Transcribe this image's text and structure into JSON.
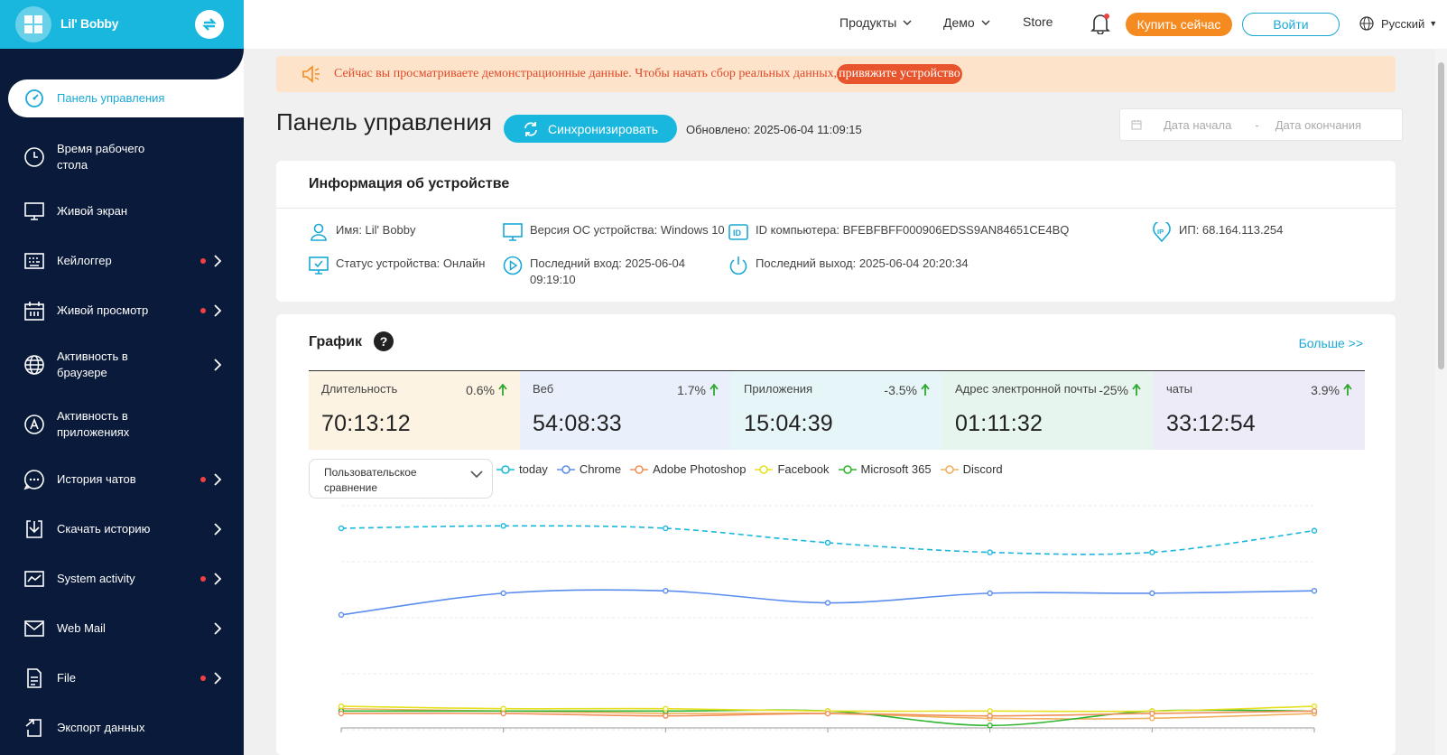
{
  "app": {
    "logo_text": "Lil' Bobby"
  },
  "sidebar": {
    "items": [
      {
        "label": "Панель управления",
        "icon": "speedometer-icon",
        "active": true
      },
      {
        "label": "Время рабочего стола",
        "icon": "clock-icon"
      },
      {
        "label": "Живой экран",
        "icon": "monitor-icon"
      },
      {
        "label": "Кейлоггер",
        "icon": "keyboard-icon",
        "dot": true,
        "chevron": true
      },
      {
        "label": "Живой просмотр",
        "icon": "calendar-icon",
        "dot": true,
        "chevron": true
      },
      {
        "label": "Активность в браузере",
        "icon": "globe-icon",
        "chevron": true
      },
      {
        "label": "Активность в приложениях",
        "icon": "app-store-icon",
        "chevron": true
      },
      {
        "label": "История чатов",
        "icon": "chat-icon",
        "dot": true,
        "chevron": true
      },
      {
        "label": "Скачать историю",
        "icon": "download-icon",
        "chevron": true
      },
      {
        "label": "System activity",
        "icon": "activity-icon",
        "dot": true,
        "chevron": true
      },
      {
        "label": "Web Mail",
        "icon": "mail-icon",
        "chevron": true
      },
      {
        "label": "File",
        "icon": "file-icon",
        "dot": true,
        "chevron": true
      },
      {
        "label": "Экспорт данных",
        "icon": "export-icon"
      }
    ]
  },
  "topbar": {
    "products": "Продукты",
    "demo": "Демо",
    "store": "Store",
    "buy": "Купить сейчас",
    "login": "Войти",
    "language": "Русский"
  },
  "banner": {
    "text": "Сейчас вы просматриваете демонстрационные данные. Чтобы начать сбор реальных данных,",
    "link": "привяжите устройство"
  },
  "header": {
    "title": "Панель управления",
    "sync": "Синхронизировать",
    "updated": "Обновлено: 2025-06-04 11:09:15",
    "date_start": "Дата начала",
    "date_sep": "-",
    "date_end": "Дата окончания"
  },
  "device": {
    "title": "Информация об устройстве",
    "name": "Имя: Lil' Bobby",
    "os": "Версия ОС устройства: Windows 10",
    "computer_id": "ID компьютера: BFEBFBFF000906EDSS9AN84651CE4BQ",
    "ip": "ИП: 68.164.113.254",
    "status": "Статус устройства: Онлайн",
    "last_login": "Последний вход: 2025-06-04 09:19:10",
    "last_logout": "Последний выход: 2025-06-04 20:20:34"
  },
  "graph": {
    "title": "График",
    "help": "?",
    "more": "Больше >>",
    "compare": "Пользовательское сравнение",
    "stats": [
      {
        "label": "Длительность",
        "pct": "0.6%",
        "value": "70:13:12",
        "bg": "#fdf3e3"
      },
      {
        "label": "Веб",
        "pct": "1.7%",
        "value": "54:08:33",
        "bg": "#eaf0fb"
      },
      {
        "label": "Приложения",
        "pct": "-3.5%",
        "value": "15:04:39",
        "bg": "#e6f6f8"
      },
      {
        "label": "Адрес электронной почты",
        "pct": "-25%",
        "value": "01:11:32",
        "bg": "#e6f5ee"
      },
      {
        "label": "чаты",
        "pct": "3.9%",
        "value": "33:12:54",
        "bg": "#eeebf9"
      }
    ],
    "legend": [
      {
        "name": "today",
        "color": "#19b7dd"
      },
      {
        "name": "Chrome",
        "color": "#5b8def"
      },
      {
        "name": "Adobe Photoshop",
        "color": "#f0905a"
      },
      {
        "name": "Facebook",
        "color": "#e6e020"
      },
      {
        "name": "Microsoft 365",
        "color": "#2fb52f"
      },
      {
        "name": "Discord",
        "color": "#f0b060"
      }
    ]
  },
  "colors": {
    "accent": "#19b7dd",
    "sidebar_bg": "#0a1a3a",
    "buy": "#f58a20",
    "up_arrow": "#2ea82e"
  },
  "chart_data": {
    "type": "line",
    "x": [
      1,
      2,
      3,
      4,
      5,
      6,
      7
    ],
    "series": [
      {
        "name": "today",
        "values": [
          78,
          79,
          78,
          72,
          68,
          68,
          77
        ]
      },
      {
        "name": "Chrome",
        "values": [
          42,
          51,
          52,
          47,
          51,
          51,
          52
        ]
      },
      {
        "name": "Adobe Photoshop",
        "values": [
          1,
          1,
          0,
          1,
          0,
          1,
          2
        ]
      },
      {
        "name": "Facebook",
        "values": [
          4,
          3,
          3,
          2,
          2,
          2,
          4
        ]
      },
      {
        "name": "Microsoft 365",
        "values": [
          2,
          2,
          2,
          2,
          -4,
          2,
          2
        ]
      },
      {
        "name": "Discord",
        "values": [
          3,
          2,
          1,
          1,
          -1,
          -1,
          1
        ]
      }
    ],
    "ylim": [
      -5,
      90
    ],
    "grid": true
  }
}
